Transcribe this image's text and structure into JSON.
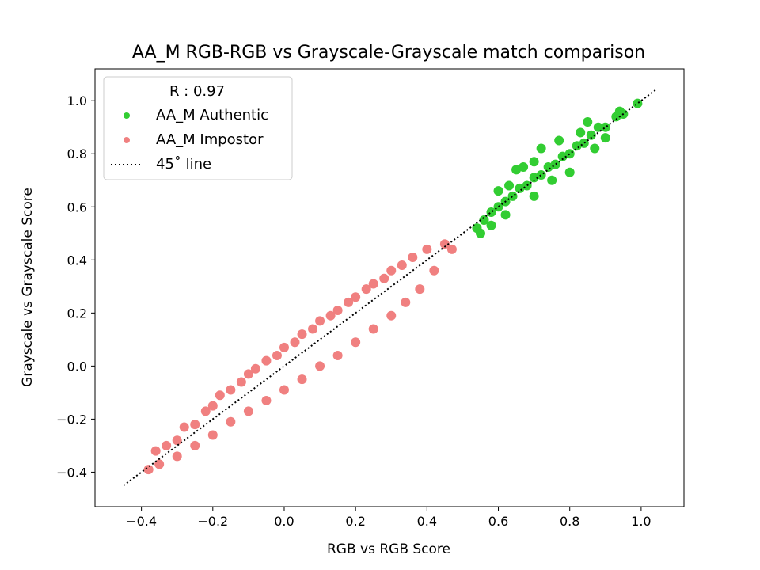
{
  "chart_data": {
    "type": "scatter",
    "title": "AA_M RGB-RGB vs Grayscale-Grayscale match comparison",
    "xlabel": "RGB vs RGB Score",
    "ylabel": "Grayscale vs Grayscale Score",
    "xlim": [
      -0.53,
      1.12
    ],
    "ylim": [
      -0.53,
      1.12
    ],
    "xticks": [
      -0.4,
      -0.2,
      0.0,
      0.2,
      0.4,
      0.6,
      0.8,
      1.0
    ],
    "yticks": [
      -0.4,
      -0.2,
      0.0,
      0.2,
      0.4,
      0.6,
      0.8,
      1.0
    ],
    "xtick_labels": [
      "−0.4",
      "−0.2",
      "0.0",
      "0.2",
      "0.4",
      "0.6",
      "0.8",
      "1.0"
    ],
    "ytick_labels": [
      "−0.4",
      "−0.2",
      "0.0",
      "0.2",
      "0.4",
      "0.6",
      "0.8",
      "1.0"
    ],
    "grid": false,
    "legend": {
      "placement": "top-left",
      "title": "R : 0.97",
      "entries": [
        {
          "label": "AA_M Authentic",
          "color": "#32cd32",
          "marker": "point"
        },
        {
          "label": "AA_M Impostor",
          "color": "#f08080",
          "marker": "point"
        },
        {
          "label": "45˚ line",
          "color": "#000000",
          "marker": "dotted-line"
        }
      ]
    },
    "series": [
      {
        "name": "AA_M Authentic",
        "color": "#32cd32",
        "points": [
          [
            0.99,
            0.99
          ],
          [
            0.95,
            0.95
          ],
          [
            0.93,
            0.94
          ],
          [
            0.9,
            0.9
          ],
          [
            0.88,
            0.9
          ],
          [
            0.86,
            0.87
          ],
          [
            0.84,
            0.84
          ],
          [
            0.82,
            0.83
          ],
          [
            0.8,
            0.8
          ],
          [
            0.78,
            0.79
          ],
          [
            0.76,
            0.76
          ],
          [
            0.74,
            0.75
          ],
          [
            0.72,
            0.72
          ],
          [
            0.7,
            0.71
          ],
          [
            0.68,
            0.68
          ],
          [
            0.66,
            0.67
          ],
          [
            0.64,
            0.64
          ],
          [
            0.62,
            0.62
          ],
          [
            0.6,
            0.6
          ],
          [
            0.58,
            0.58
          ],
          [
            0.56,
            0.55
          ],
          [
            0.54,
            0.52
          ],
          [
            0.55,
            0.5
          ],
          [
            0.6,
            0.66
          ],
          [
            0.65,
            0.74
          ],
          [
            0.7,
            0.77
          ],
          [
            0.72,
            0.82
          ],
          [
            0.85,
            0.92
          ],
          [
            0.9,
            0.86
          ],
          [
            0.8,
            0.73
          ],
          [
            0.75,
            0.7
          ],
          [
            0.7,
            0.64
          ],
          [
            0.62,
            0.57
          ],
          [
            0.58,
            0.53
          ],
          [
            0.94,
            0.96
          ],
          [
            0.83,
            0.88
          ],
          [
            0.77,
            0.85
          ],
          [
            0.67,
            0.75
          ],
          [
            0.63,
            0.68
          ],
          [
            0.87,
            0.82
          ]
        ]
      },
      {
        "name": "AA_M Impostor",
        "color": "#f08080",
        "points": [
          [
            -0.38,
            -0.39
          ],
          [
            -0.36,
            -0.32
          ],
          [
            -0.33,
            -0.3
          ],
          [
            -0.3,
            -0.28
          ],
          [
            -0.28,
            -0.23
          ],
          [
            -0.25,
            -0.22
          ],
          [
            -0.22,
            -0.17
          ],
          [
            -0.2,
            -0.15
          ],
          [
            -0.18,
            -0.11
          ],
          [
            -0.15,
            -0.09
          ],
          [
            -0.12,
            -0.06
          ],
          [
            -0.1,
            -0.03
          ],
          [
            -0.08,
            -0.01
          ],
          [
            -0.05,
            0.02
          ],
          [
            -0.02,
            0.04
          ],
          [
            0.0,
            0.07
          ],
          [
            0.03,
            0.09
          ],
          [
            0.05,
            0.12
          ],
          [
            0.08,
            0.14
          ],
          [
            0.1,
            0.17
          ],
          [
            0.13,
            0.19
          ],
          [
            0.15,
            0.21
          ],
          [
            0.18,
            0.24
          ],
          [
            0.2,
            0.26
          ],
          [
            0.23,
            0.29
          ],
          [
            0.25,
            0.31
          ],
          [
            0.28,
            0.33
          ],
          [
            0.3,
            0.36
          ],
          [
            0.33,
            0.38
          ],
          [
            0.36,
            0.41
          ],
          [
            0.4,
            0.44
          ],
          [
            0.45,
            0.46
          ],
          [
            0.47,
            0.44
          ],
          [
            0.42,
            0.36
          ],
          [
            0.38,
            0.29
          ],
          [
            0.34,
            0.24
          ],
          [
            0.3,
            0.19
          ],
          [
            0.25,
            0.14
          ],
          [
            0.2,
            0.09
          ],
          [
            0.15,
            0.04
          ],
          [
            0.1,
            0.0
          ],
          [
            0.05,
            -0.05
          ],
          [
            0.0,
            -0.09
          ],
          [
            -0.05,
            -0.13
          ],
          [
            -0.1,
            -0.17
          ],
          [
            -0.15,
            -0.21
          ],
          [
            -0.2,
            -0.26
          ],
          [
            -0.25,
            -0.3
          ],
          [
            -0.3,
            -0.34
          ],
          [
            -0.35,
            -0.37
          ]
        ]
      }
    ],
    "reference_line": {
      "name": "45˚ line",
      "from": [
        -0.45,
        -0.45
      ],
      "to": [
        1.04,
        1.04
      ],
      "style": "dotted",
      "color": "#000000"
    }
  }
}
